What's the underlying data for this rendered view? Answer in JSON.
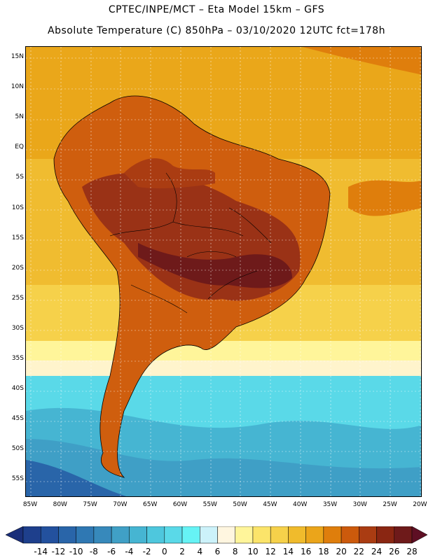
{
  "header": {
    "line1": "CPTEC/INPE/MCT –  Eta Model 15km – GFS",
    "line2": "Absolute Temperature (C) 850hPa – 03/10/2020 12UTC fct=178h"
  },
  "map": {
    "lat_labels": [
      "15N",
      "10N",
      "5N",
      "EQ",
      "5S",
      "10S",
      "15S",
      "20S",
      "25S",
      "30S",
      "35S",
      "40S",
      "45S",
      "50S",
      "55S"
    ],
    "lon_labels": [
      "85W",
      "80W",
      "75W",
      "70W",
      "65W",
      "60W",
      "55W",
      "50W",
      "45W",
      "40W",
      "35W",
      "30W",
      "25W",
      "20W"
    ]
  },
  "colorbar": {
    "labels": [
      "-14",
      "-12",
      "-10",
      "-8",
      "-6",
      "-4",
      "-2",
      "0",
      "2",
      "4",
      "6",
      "8",
      "10",
      "12",
      "14",
      "16",
      "18",
      "20",
      "22",
      "24",
      "26",
      "28"
    ],
    "colors": [
      "#1e3f8c",
      "#23519e",
      "#2965a9",
      "#2f78b3",
      "#3789bb",
      "#40a0c6",
      "#46b5d2",
      "#4ec7dd",
      "#5ad9e8",
      "#66f3f5",
      "#ccf2fa",
      "#fff6e0",
      "#fff59a",
      "#fbe46a",
      "#f6d14a",
      "#f0bb2c",
      "#eba51a",
      "#df7e0c",
      "#cc5a0c",
      "#aa3c12",
      "#8a2612",
      "#6e1a1a"
    ],
    "left_color": "#1a2f7a",
    "right_color": "#5e0f24"
  },
  "palette": {
    "ocean_north": "#eaa71a",
    "ocean_mid": "#f0bc30",
    "warm_land": "#cf5e0e",
    "hot_land": "#9a3216",
    "hottest": "#6e1a1a",
    "cool_transition": "#fff4cc",
    "cold_water": "#5ad9e8",
    "colder_water": "#3f9fc6",
    "coldest_water": "#2965a9"
  }
}
